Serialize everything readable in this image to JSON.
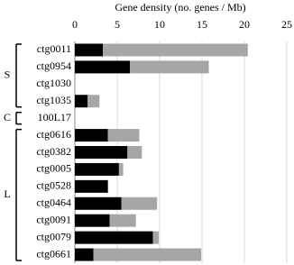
{
  "chart_data": {
    "type": "stacked-barh",
    "x_label": "Gene density (no. genes / Mb)",
    "categories": [
      "ctg0011",
      "ctg0954",
      "ctg1030",
      "ctg1035",
      "100L17",
      "ctg0616",
      "ctg0382",
      "ctg0005",
      "ctg0528",
      "ctg0464",
      "ctg0091",
      "ctg0079",
      "ctg0661"
    ],
    "groups": [
      {
        "label": "S",
        "size": 4
      },
      {
        "label": "C",
        "size": 1
      },
      {
        "label": "L",
        "size": 8
      }
    ],
    "series": [
      {
        "color": "#000000",
        "values": [
          3.3,
          6.5,
          0,
          1.5,
          0,
          3.9,
          6.2,
          5.2,
          3.9,
          5.5,
          4.1,
          9.2,
          2.2
        ]
      },
      {
        "color": "#a6a6a6",
        "values": [
          17.1,
          9.3,
          0,
          1.4,
          0,
          3.7,
          1.7,
          0.5,
          0,
          4.2,
          3.1,
          0.7,
          12.7
        ]
      }
    ],
    "xlim": [
      0,
      25
    ],
    "xticks": [
      0,
      5,
      10,
      15,
      20,
      25
    ],
    "grid": true
  }
}
